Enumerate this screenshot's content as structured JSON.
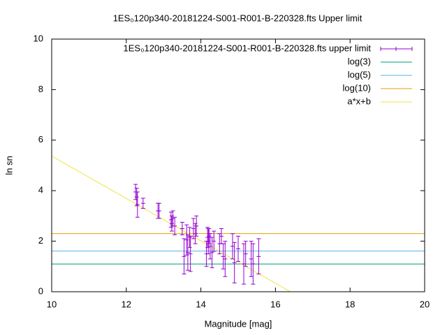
{
  "chart_data": {
    "type": "errorbar",
    "title": "1ES₀120p340-20181224-S001-R001-B-220328.fts Upper limit",
    "xlabel": "Magnitude [mag]",
    "ylabel": "ln sn",
    "xlim": [
      10,
      20
    ],
    "ylim": [
      0,
      10
    ],
    "xticks": [
      10,
      12,
      14,
      16,
      18,
      20
    ],
    "yticks": [
      0,
      2,
      4,
      6,
      8,
      10
    ],
    "legend": "top-right",
    "points": {
      "name": "1ES₀120p340-20181224-S001-R001-B-220328.fts upper limit",
      "color": "#9400d3",
      "x": [
        12.25,
        12.28,
        12.3,
        12.45,
        12.85,
        12.88,
        13.2,
        13.22,
        13.25,
        13.3,
        13.5,
        13.55,
        13.62,
        13.65,
        13.7,
        13.72,
        13.8,
        13.85,
        13.88,
        14.15,
        14.18,
        14.2,
        14.22,
        14.25,
        14.3,
        14.35,
        14.5,
        14.55,
        14.6,
        14.65,
        14.85,
        14.9,
        15.0,
        15.15,
        15.2,
        15.35,
        15.4,
        15.55
      ],
      "values": [
        3.95,
        3.75,
        3.45,
        3.5,
        3.2,
        3.2,
        2.85,
        2.7,
        2.9,
        2.6,
        2.5,
        1.4,
        2.05,
        1.55,
        2.15,
        1.5,
        2.5,
        2.3,
        2.6,
        1.5,
        2.15,
        2.0,
        2.2,
        1.8,
        1.55,
        2.0,
        1.9,
        2.2,
        1.4,
        1.3,
        1.8,
        1.15,
        1.7,
        1.1,
        1.5,
        1.3,
        1.1,
        1.4
      ],
      "errors": [
        0.3,
        0.35,
        0.5,
        0.2,
        0.3,
        0.3,
        0.3,
        0.3,
        0.3,
        0.35,
        0.25,
        0.7,
        0.6,
        0.7,
        0.4,
        0.7,
        0.4,
        0.4,
        0.4,
        0.5,
        0.4,
        0.5,
        0.3,
        0.5,
        0.6,
        0.4,
        0.4,
        0.3,
        0.5,
        0.7,
        0.5,
        0.8,
        0.5,
        0.8,
        0.5,
        0.7,
        0.8,
        0.7
      ]
    },
    "hlines": [
      {
        "name": "log(3)",
        "color": "#009e73",
        "value": 1.0986
      },
      {
        "name": "log(5)",
        "color": "#56b4e9",
        "value": 1.6094
      },
      {
        "name": "log(10)",
        "color": "#e69f00",
        "value": 2.3026
      }
    ],
    "fit": {
      "name": "a*x+b",
      "color": "#f0e442",
      "x": [
        10,
        16.4
      ],
      "values": [
        5.37,
        0
      ]
    }
  }
}
